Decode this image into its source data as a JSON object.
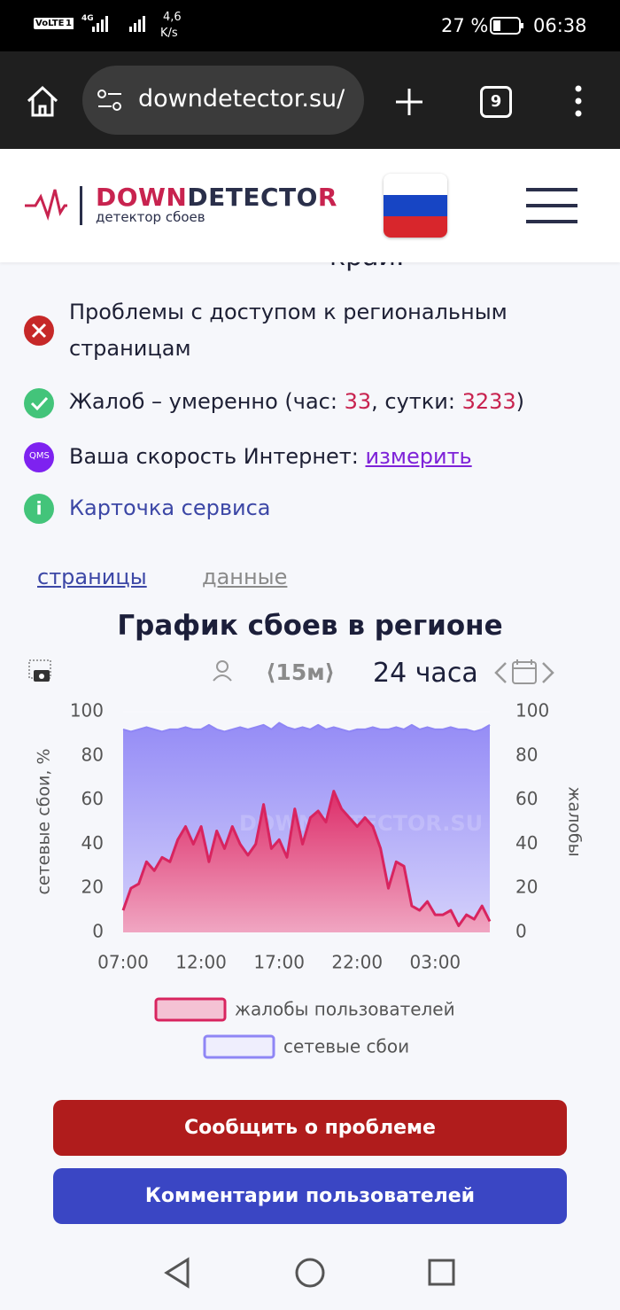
{
  "status_bar": {
    "volte": "VoLTE",
    "sim": "1",
    "network": "4G",
    "speed": "4,6",
    "speed_unit": "K/s",
    "battery": "27 %",
    "time": "06:38"
  },
  "browser": {
    "url": "downdetector.su/",
    "tabs": "9"
  },
  "header": {
    "logo_part1": "DOWN",
    "logo_part2": "DETECTO",
    "logo_part3": "R",
    "tagline": "детектор сбоев"
  },
  "partial_heading": "край.",
  "status_items": [
    {
      "text": "Проблемы с доступом к региональным страницам"
    },
    {
      "before": "Жалоб – умеренно (час: ",
      "hour": "33",
      "middle": ", сутки: ",
      "day": "3233",
      "after": ")"
    },
    {
      "icon": "QMS",
      "text": "Ваша скорость Интернет: ",
      "link": "измерить"
    },
    {
      "link": "Карточка сервиса"
    }
  ],
  "tabs": [
    "страницы",
    "данные"
  ],
  "controls": {
    "interval": "⟨15м⟩",
    "period": "24 часа"
  },
  "chart_data": {
    "type": "area",
    "title": "График сбоев в регионе",
    "watermark": "DOWNDETECTOR.SU",
    "ylabel": "сетевые сбои, %",
    "y2label": "жалобы",
    "x": [
      "07:00",
      "07:30",
      "08:00",
      "08:30",
      "09:00",
      "09:30",
      "10:00",
      "10:30",
      "11:00",
      "11:30",
      "12:00",
      "12:30",
      "13:00",
      "13:30",
      "14:00",
      "14:30",
      "15:00",
      "15:30",
      "16:00",
      "16:30",
      "17:00",
      "17:30",
      "18:00",
      "18:30",
      "19:00",
      "19:30",
      "20:00",
      "20:30",
      "21:00",
      "21:30",
      "22:00",
      "22:30",
      "23:00",
      "23:30",
      "00:00",
      "00:30",
      "01:00",
      "01:30",
      "02:00",
      "02:30",
      "03:00",
      "03:30",
      "04:00",
      "04:30",
      "05:00",
      "05:30",
      "06:00",
      "06:30"
    ],
    "xticks": [
      "07:00",
      "12:00",
      "17:00",
      "22:00",
      "03:00"
    ],
    "ylim": [
      0,
      100
    ],
    "yticks": [
      0,
      20,
      40,
      60,
      80,
      100
    ],
    "y2lim": [
      0,
      100
    ],
    "y2ticks": [
      0,
      20,
      40,
      60,
      80,
      100
    ],
    "grid": true,
    "series": [
      {
        "name": "сетевые сбои",
        "color": "#8f86f5",
        "fill": "#efeefd",
        "axis": "y",
        "values": [
          92,
          91,
          92,
          93,
          92,
          91,
          92,
          92,
          93,
          92,
          92,
          94,
          92,
          91,
          92,
          93,
          92,
          93,
          94,
          92,
          95,
          93,
          92,
          93,
          92,
          94,
          92,
          93,
          92,
          91,
          92,
          92,
          93,
          92,
          92,
          93,
          92,
          94,
          92,
          93,
          92,
          92,
          93,
          92,
          92,
          91,
          92,
          94
        ]
      },
      {
        "name": "жалобы пользователей",
        "color": "#d8245f",
        "fill": "#f4c2d4",
        "axis": "y2",
        "values": [
          10,
          20,
          22,
          32,
          28,
          34,
          32,
          42,
          48,
          40,
          48,
          32,
          46,
          38,
          48,
          40,
          35,
          40,
          58,
          38,
          42,
          34,
          56,
          40,
          52,
          55,
          50,
          64,
          56,
          52,
          48,
          52,
          48,
          38,
          20,
          32,
          30,
          12,
          10,
          14,
          8,
          8,
          10,
          3,
          8,
          6,
          12,
          5
        ]
      }
    ]
  },
  "buttons": [
    "Сообщить о проблеме",
    "Комментарии пользователей"
  ]
}
